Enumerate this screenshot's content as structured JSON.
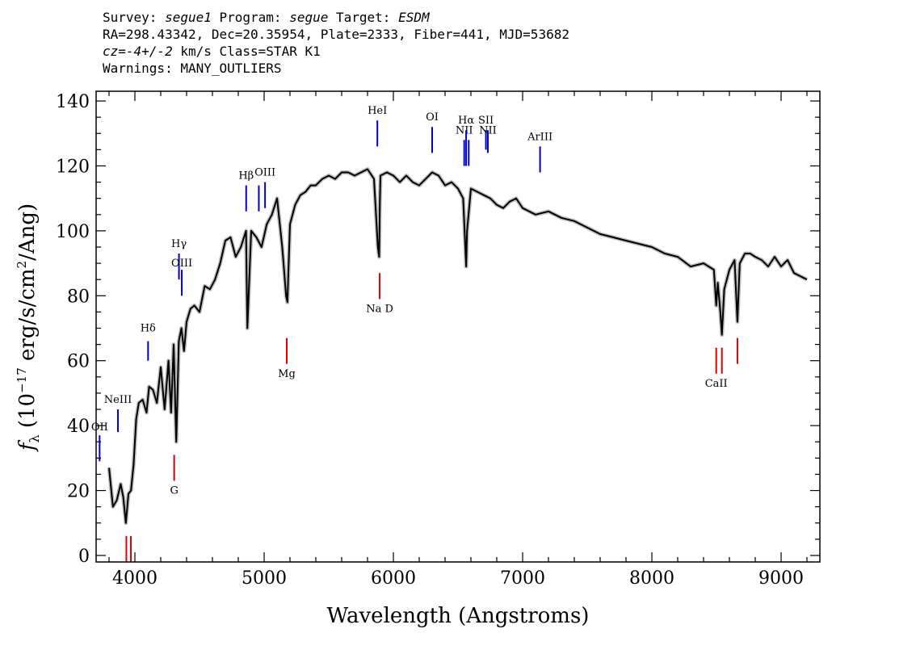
{
  "header": {
    "line1": {
      "survey_label": "Survey: ",
      "survey": "segue1",
      "program_label": " Program: ",
      "program": "segue",
      "target_label": " Target: ",
      "target": "ESDM"
    },
    "line2": "RA=298.43342, Dec=20.35954, Plate=2333, Fiber=441, MJD=53682",
    "line3": {
      "cz_label": "cz",
      "cz_value": "=-4+/-2",
      "rest": " km/s Class=STAR K1"
    },
    "line4": "Warnings: MANY_OUTLIERS"
  },
  "colors": {
    "spectrum": "#000000",
    "error_band": "#bdbdbd",
    "emission": "#0000cc",
    "absorption": "#dd0000"
  },
  "chart_data": {
    "type": "line",
    "xlabel": "Wavelength (Angstroms)",
    "ylabel": "f_λ (10^-17 erg/s/cm^2/Ang)",
    "ylabel_parts": {
      "f": "f",
      "lambda": "λ",
      "open": " (10",
      "exp1": "−17",
      "mid": " erg/s/cm",
      "exp2": "2",
      "close": "/Ang)"
    },
    "xlim": [
      3700,
      9300
    ],
    "ylim": [
      -2,
      143
    ],
    "xticks": [
      4000,
      5000,
      6000,
      7000,
      8000,
      9000
    ],
    "yticks": [
      0,
      20,
      40,
      60,
      80,
      100,
      120,
      140
    ],
    "grid": false,
    "series": [
      {
        "x": [
          3800,
          3830,
          3860,
          3890,
          3910,
          3930,
          3950,
          3970,
          3990,
          4010,
          4030,
          4060,
          4090,
          4110,
          4140,
          4170,
          4200,
          4230,
          4260,
          4280,
          4300,
          4320,
          4340,
          4360,
          4380,
          4400,
          4430,
          4460,
          4500,
          4540,
          4580,
          4620,
          4660,
          4700,
          4740,
          4780,
          4820,
          4860,
          4870,
          4900,
          4940,
          4980,
          5020,
          5060,
          5100,
          5140,
          5170,
          5180,
          5200,
          5240,
          5280,
          5320,
          5360,
          5400,
          5450,
          5500,
          5550,
          5600,
          5650,
          5700,
          5750,
          5800,
          5850,
          5880,
          5890,
          5895,
          5900,
          5950,
          6000,
          6050,
          6100,
          6150,
          6200,
          6250,
          6300,
          6350,
          6400,
          6450,
          6500,
          6540,
          6560,
          6563,
          6570,
          6600,
          6650,
          6700,
          6750,
          6800,
          6850,
          6900,
          6950,
          7000,
          7100,
          7200,
          7300,
          7400,
          7500,
          7600,
          7700,
          7800,
          7900,
          8000,
          8100,
          8200,
          8300,
          8400,
          8480,
          8498,
          8510,
          8530,
          8542,
          8560,
          8600,
          8640,
          8662,
          8680,
          8720,
          8760,
          8800,
          8850,
          8900,
          8950,
          9000,
          9050,
          9100,
          9150,
          9200
        ],
        "y": [
          27,
          15,
          17,
          22,
          18,
          10,
          19,
          20,
          28,
          42,
          47,
          48,
          44,
          52,
          51,
          47,
          58,
          45,
          60,
          44,
          65,
          35,
          66,
          70,
          63,
          72,
          76,
          77,
          75,
          83,
          82,
          85,
          90,
          97,
          98,
          92,
          95,
          100,
          70,
          100,
          98,
          95,
          102,
          105,
          110,
          95,
          80,
          78,
          102,
          108,
          111,
          112,
          114,
          114,
          116,
          117,
          116,
          118,
          118,
          117,
          118,
          119,
          116,
          95,
          92,
          108,
          117,
          118,
          117,
          115,
          117,
          115,
          114,
          116,
          118,
          117,
          114,
          115,
          113,
          110,
          92,
          89,
          100,
          113,
          112,
          111,
          110,
          108,
          107,
          109,
          110,
          107,
          105,
          106,
          104,
          103,
          101,
          99,
          98,
          97,
          96,
          95,
          93,
          92,
          89,
          90,
          88,
          77,
          84,
          75,
          68,
          82,
          88,
          91,
          72,
          90,
          93,
          93,
          92,
          91,
          89,
          92,
          89,
          91,
          87,
          86,
          85
        ]
      }
    ],
    "line_markers": {
      "emission": [
        {
          "label": "OII",
          "x": 3727,
          "y1": 29,
          "y2": 37,
          "label_y": 38.5
        },
        {
          "label": "NeIII",
          "x": 3869,
          "y1": 38,
          "y2": 45,
          "label_y": 47
        },
        {
          "label": "Hδ",
          "x": 4102,
          "y1": 60,
          "y2": 66,
          "label_y": 69
        },
        {
          "label": "Hγ",
          "x": 4341,
          "y1": 85,
          "y2": 93,
          "label_y": 95
        },
        {
          "label": "OIII",
          "x": 4363,
          "y1": 80,
          "y2": 88,
          "label_y": 89
        },
        {
          "label": "Hβ",
          "x": 4861,
          "y1": 106,
          "y2": 114,
          "label_y": 116
        },
        {
          "label": "",
          "x": 4959,
          "y1": 106,
          "y2": 114,
          "label_y": 0
        },
        {
          "label": "OIII",
          "x": 5007,
          "y1": 107,
          "y2": 115,
          "label_y": 117
        },
        {
          "label": "HeI",
          "x": 5876,
          "y1": 126,
          "y2": 134,
          "label_y": 136
        },
        {
          "label": "OI",
          "x": 6300,
          "y1": 124,
          "y2": 132,
          "label_y": 134
        },
        {
          "label": "NII",
          "x": 6548,
          "y1": 120,
          "y2": 128,
          "label_y": 130
        },
        {
          "label": "Hα",
          "x": 6563,
          "y1": 120,
          "y2": 131,
          "label_y": 133
        },
        {
          "label": "",
          "x": 6583,
          "y1": 120,
          "y2": 128,
          "label_y": 0
        },
        {
          "label": "SII",
          "x": 6716,
          "y1": 125,
          "y2": 131,
          "label_y": 133
        },
        {
          "label": "NII",
          "x": 6731,
          "y1": 124,
          "y2": 131,
          "label_y": 130
        },
        {
          "label": "ArIII",
          "x": 7135,
          "y1": 118,
          "y2": 126,
          "label_y": 128
        }
      ],
      "absorption": [
        {
          "label": "",
          "x": 3934,
          "y1": -3,
          "y2": 6,
          "label_y": 0
        },
        {
          "label": "",
          "x": 3969,
          "y1": -3,
          "y2": 6,
          "label_y": 0
        },
        {
          "label": "G",
          "x": 4304,
          "y1": 23,
          "y2": 31,
          "label_y": 19
        },
        {
          "label": "Mg",
          "x": 5175,
          "y1": 59,
          "y2": 67,
          "label_y": 55
        },
        {
          "label": "Na D",
          "x": 5894,
          "y1": 79,
          "y2": 87,
          "label_y": 75
        },
        {
          "label": "CaII",
          "x": 8498,
          "y1": 56,
          "y2": 64,
          "label_y": 52
        },
        {
          "label": "",
          "x": 8542,
          "y1": 56,
          "y2": 64,
          "label_y": 0
        },
        {
          "label": "",
          "x": 8662,
          "y1": 59,
          "y2": 67,
          "label_y": 0
        }
      ]
    }
  }
}
